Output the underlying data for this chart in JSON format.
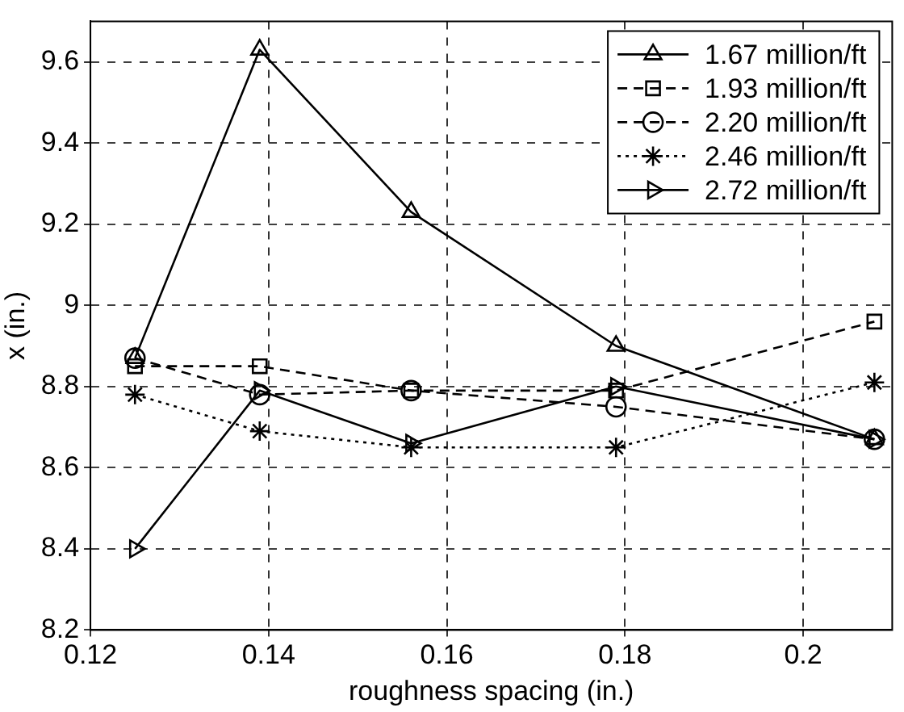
{
  "chart_data": {
    "type": "line",
    "xlabel": "roughness spacing (in.)",
    "ylabel": "x (in.)",
    "x": [
      0.125,
      0.139,
      0.156,
      0.179,
      0.208
    ],
    "series": [
      {
        "name": "1.67 million/ft",
        "color": "#000000",
        "marker": "triangle",
        "line_style": "solid",
        "values": [
          8.87,
          9.63,
          9.23,
          8.9,
          8.67
        ]
      },
      {
        "name": "1.93 million/ft",
        "color": "#000000",
        "marker": "square",
        "line_style": "dashed",
        "values": [
          8.85,
          8.85,
          8.79,
          8.79,
          8.96
        ]
      },
      {
        "name": "2.20 million/ft",
        "color": "#000000",
        "marker": "circle",
        "line_style": "dashed",
        "values": [
          8.87,
          8.78,
          8.79,
          8.75,
          8.67
        ]
      },
      {
        "name": "2.46 million/ft",
        "color": "#000000",
        "marker": "cross",
        "line_style": "dotted",
        "values": [
          8.78,
          8.69,
          8.65,
          8.65,
          8.81
        ]
      },
      {
        "name": "2.72 million/ft",
        "color": "#000000",
        "marker": "triangle-right",
        "line_style": "solid",
        "values": [
          8.4,
          8.79,
          8.66,
          8.8,
          8.67
        ]
      }
    ],
    "xlim": [
      0.12,
      0.21
    ],
    "xticks": [
      0.12,
      0.14,
      0.16,
      0.18,
      0.2
    ],
    "ylim": [
      8.2,
      9.7
    ],
    "yticks": [
      8.2,
      8.4,
      8.6,
      8.8,
      9,
      9.2,
      9.4,
      9.6
    ],
    "grid": true,
    "legend": "top right"
  }
}
